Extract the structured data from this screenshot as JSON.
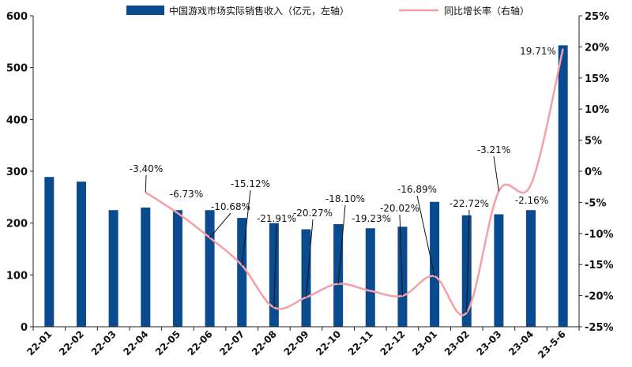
{
  "chart_data": {
    "type": "bar",
    "categories": [
      "22-01",
      "22-02",
      "22-03",
      "22-04",
      "22-05",
      "22-06",
      "22-07",
      "22-08",
      "22-09",
      "22-10",
      "22-11",
      "22-12",
      "23-01",
      "23-02",
      "23-03",
      "23-04",
      "23-5-6"
    ],
    "series": [
      {
        "name": "中国游戏市场实际销售收入（亿元，左轴）",
        "type": "bar",
        "axis": "left",
        "color": "#0a4a8f",
        "values": [
          289,
          280,
          225,
          230,
          225,
          225,
          210,
          200,
          188,
          198,
          190,
          193,
          241,
          215,
          217,
          225,
          543
        ]
      },
      {
        "name": "同比增长率（右轴）",
        "type": "line",
        "axis": "right",
        "color": "#f4a0a6",
        "values": [
          null,
          null,
          null,
          -3.4,
          -6.73,
          -10.68,
          -15.12,
          -21.91,
          -20.27,
          -18.1,
          -19.23,
          -20.02,
          -16.89,
          -22.72,
          -3.21,
          -2.16,
          19.71
        ],
        "labels": [
          "",
          "",
          "",
          "-3.40%",
          "-6.73%",
          "-10.68%",
          "-15.12%",
          "-21.91%",
          "-20.27%",
          "-18.10%",
          "-19.23%",
          "-20.02%",
          "-16.89%",
          "-22.72%",
          "-3.21%",
          "-2.16%",
          "19.71%"
        ]
      }
    ],
    "y_left": {
      "min": 0,
      "max": 600,
      "ticks": [
        "0",
        "100",
        "200",
        "300",
        "400",
        "500",
        "600"
      ]
    },
    "y_right": {
      "min": -25,
      "max": 25,
      "ticks": [
        "-25%",
        "-20%",
        "-15%",
        "-10%",
        "-5%",
        "0%",
        "5%",
        "10%",
        "15%",
        "20%",
        "25%"
      ]
    },
    "legend_position": "top",
    "grid": false
  }
}
